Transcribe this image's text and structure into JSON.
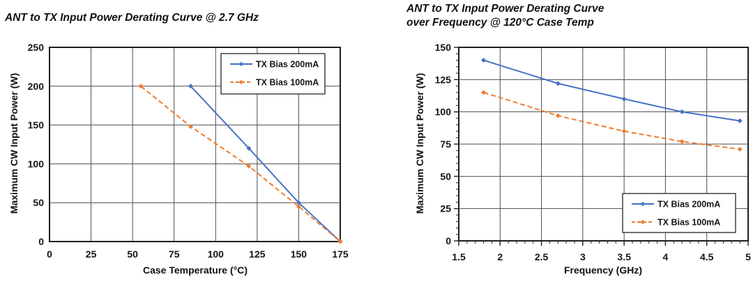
{
  "style": {
    "blue": "#4472C4",
    "orange": "#ED7D31",
    "grid_color": "#4d4d4d",
    "axis_color": "#1f1f1f",
    "legend_border_color": "#404040"
  },
  "chart_data": [
    {
      "type": "line",
      "title": "ANT to TX Input Power Derating Curve @ 2.7 GHz",
      "title_lines": [
        "ANT to TX Input Power Derating Curve @ 2.7 GHz"
      ],
      "xlabel": "Case Temperature (°C)",
      "ylabel": "Maximum CW Input Power (W)",
      "xlim": [
        0,
        175
      ],
      "xstep": 25,
      "ylim": [
        0,
        250
      ],
      "ystep": 50,
      "grid": true,
      "legend_position": "top-right",
      "series": [
        {
          "name": "TX Bias 200mA",
          "color": "#4472C4",
          "dash": "solid",
          "points": [
            [
              85,
              200
            ],
            [
              120,
              120
            ],
            [
              150,
              50
            ],
            [
              175,
              0
            ]
          ]
        },
        {
          "name": "TX Bias 100mA",
          "color": "#ED7D31",
          "dash": "dashed",
          "points": [
            [
              55,
              200
            ],
            [
              85,
              148
            ],
            [
              120,
              97
            ],
            [
              150,
              45
            ],
            [
              175,
              0
            ]
          ]
        }
      ]
    },
    {
      "type": "line",
      "title": "ANT to TX Input Power Derating Curve over Frequency @ 120°C Case Temp",
      "title_lines": [
        "ANT to TX Input Power Derating Curve",
        "over Frequency @ 120°C Case Temp"
      ],
      "xlabel": "Frequency (GHz)",
      "ylabel": "Maximum CW Input Power (W)",
      "xlim": [
        1.5,
        5
      ],
      "xstep": 0.5,
      "x_minor": 0.1,
      "ylim": [
        0,
        150
      ],
      "ystep": 25,
      "y_minor": 5,
      "grid": true,
      "legend_position": "bottom-right",
      "series": [
        {
          "name": "TX Bias 200mA",
          "color": "#4472C4",
          "dash": "solid",
          "points": [
            [
              1.8,
              140
            ],
            [
              2.7,
              122
            ],
            [
              3.5,
              110
            ],
            [
              4.2,
              100
            ],
            [
              4.9,
              93
            ]
          ]
        },
        {
          "name": "TX Bias 100mA",
          "color": "#ED7D31",
          "dash": "dashed",
          "points": [
            [
              1.8,
              115
            ],
            [
              2.7,
              97
            ],
            [
              3.5,
              85
            ],
            [
              4.2,
              77
            ],
            [
              4.9,
              71
            ]
          ]
        }
      ]
    }
  ]
}
